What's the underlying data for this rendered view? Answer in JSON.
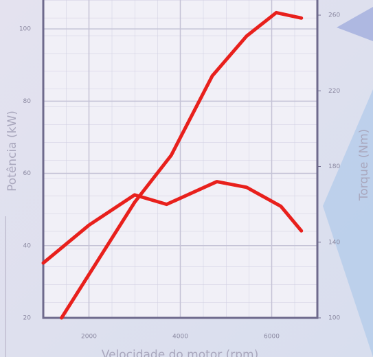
{
  "chart_data": {
    "type": "line",
    "x_label": "Velocidade do motor (rpm)",
    "y_label": "Potência (kW)",
    "y2_label": "Torque (Nm)",
    "xlim": [
      1000,
      7000
    ],
    "xticks": [
      2000,
      4000,
      6000
    ],
    "ylim": [
      20,
      108
    ],
    "yticks": [
      20,
      40,
      60,
      80,
      100
    ],
    "y2lim": [
      100,
      268
    ],
    "y2ticks": [
      100,
      140,
      180,
      220,
      260
    ],
    "grid": true,
    "series": [
      {
        "name": "Potência",
        "color": "#e8201c",
        "x": [
          1400,
          2200,
          3000,
          3800,
          4700,
          5450,
          6100,
          6650
        ],
        "values": [
          20,
          36,
          52,
          65,
          87,
          98,
          104.5,
          103
        ]
      },
      {
        "name": "Torque",
        "color": "#e8201c",
        "axis": "y2",
        "x": [
          1000,
          2000,
          3000,
          3700,
          4800,
          5450,
          6200,
          6650
        ],
        "values": [
          129,
          149,
          165,
          160,
          172,
          169,
          159,
          146
        ]
      }
    ]
  }
}
